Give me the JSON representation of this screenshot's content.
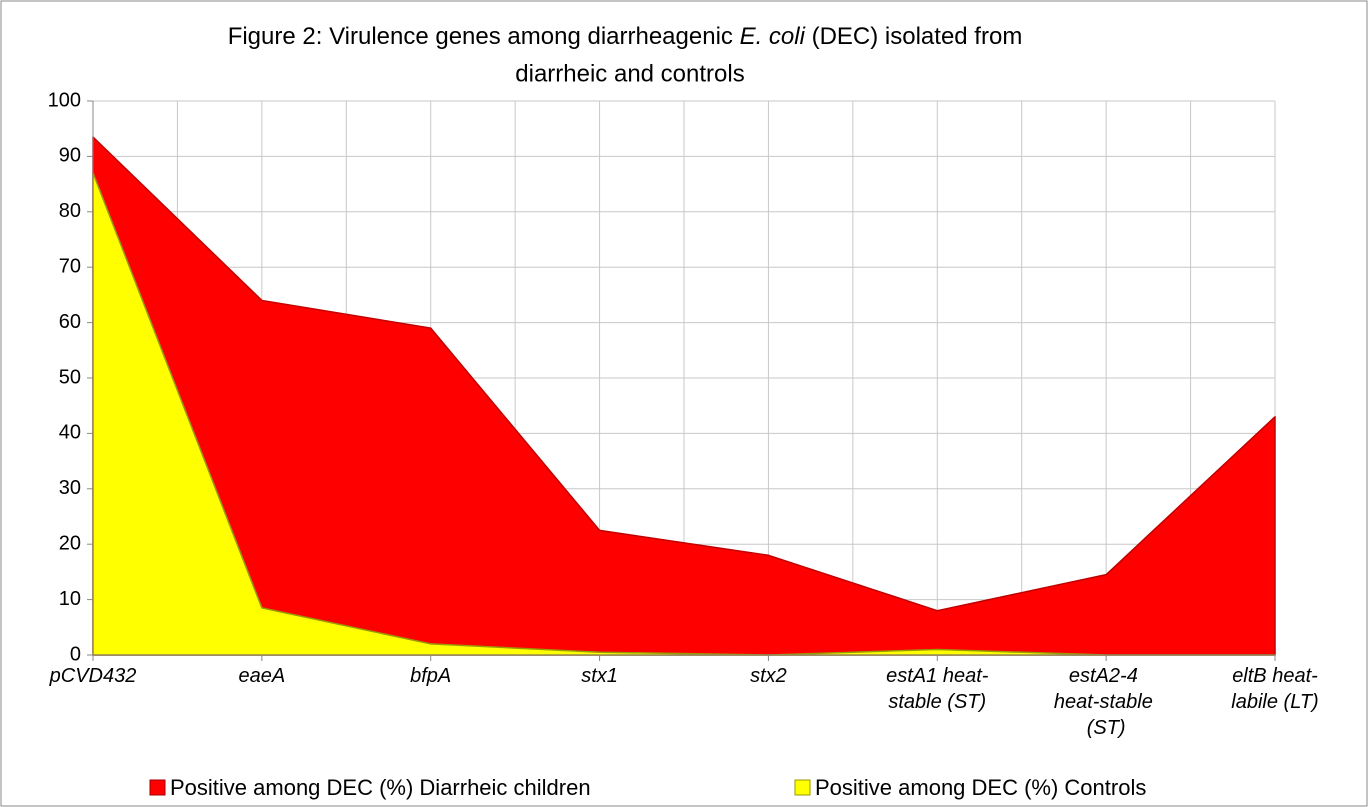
{
  "chart_data": {
    "type": "area",
    "title_parts": [
      "Figure 2: Virulence genes among diarrheagenic ",
      "E. coli",
      " (DEC) isolated from",
      "diarrheic and controls"
    ],
    "categories": [
      "pCVD432",
      "eaeA",
      "bfpA",
      "stx1",
      "stx2",
      "estA1 heat-stable (ST)",
      "estA2-4 heat-stable (ST)",
      "eltB heat-labile (LT)"
    ],
    "series": [
      {
        "name": "Positive among DEC (%) Diarrheic children",
        "color": "#ff0000",
        "values": [
          93.5,
          64,
          59,
          22.5,
          18,
          8,
          14.5,
          43
        ]
      },
      {
        "name": "Positive among DEC (%) Controls",
        "color": "#ffff00",
        "values": [
          87,
          8.5,
          2,
          0.5,
          0,
          1,
          0,
          0
        ]
      }
    ],
    "ylim": [
      0,
      100
    ],
    "yticks": [
      0,
      10,
      20,
      30,
      40,
      50,
      60,
      70,
      80,
      90,
      100
    ],
    "grid": true
  }
}
